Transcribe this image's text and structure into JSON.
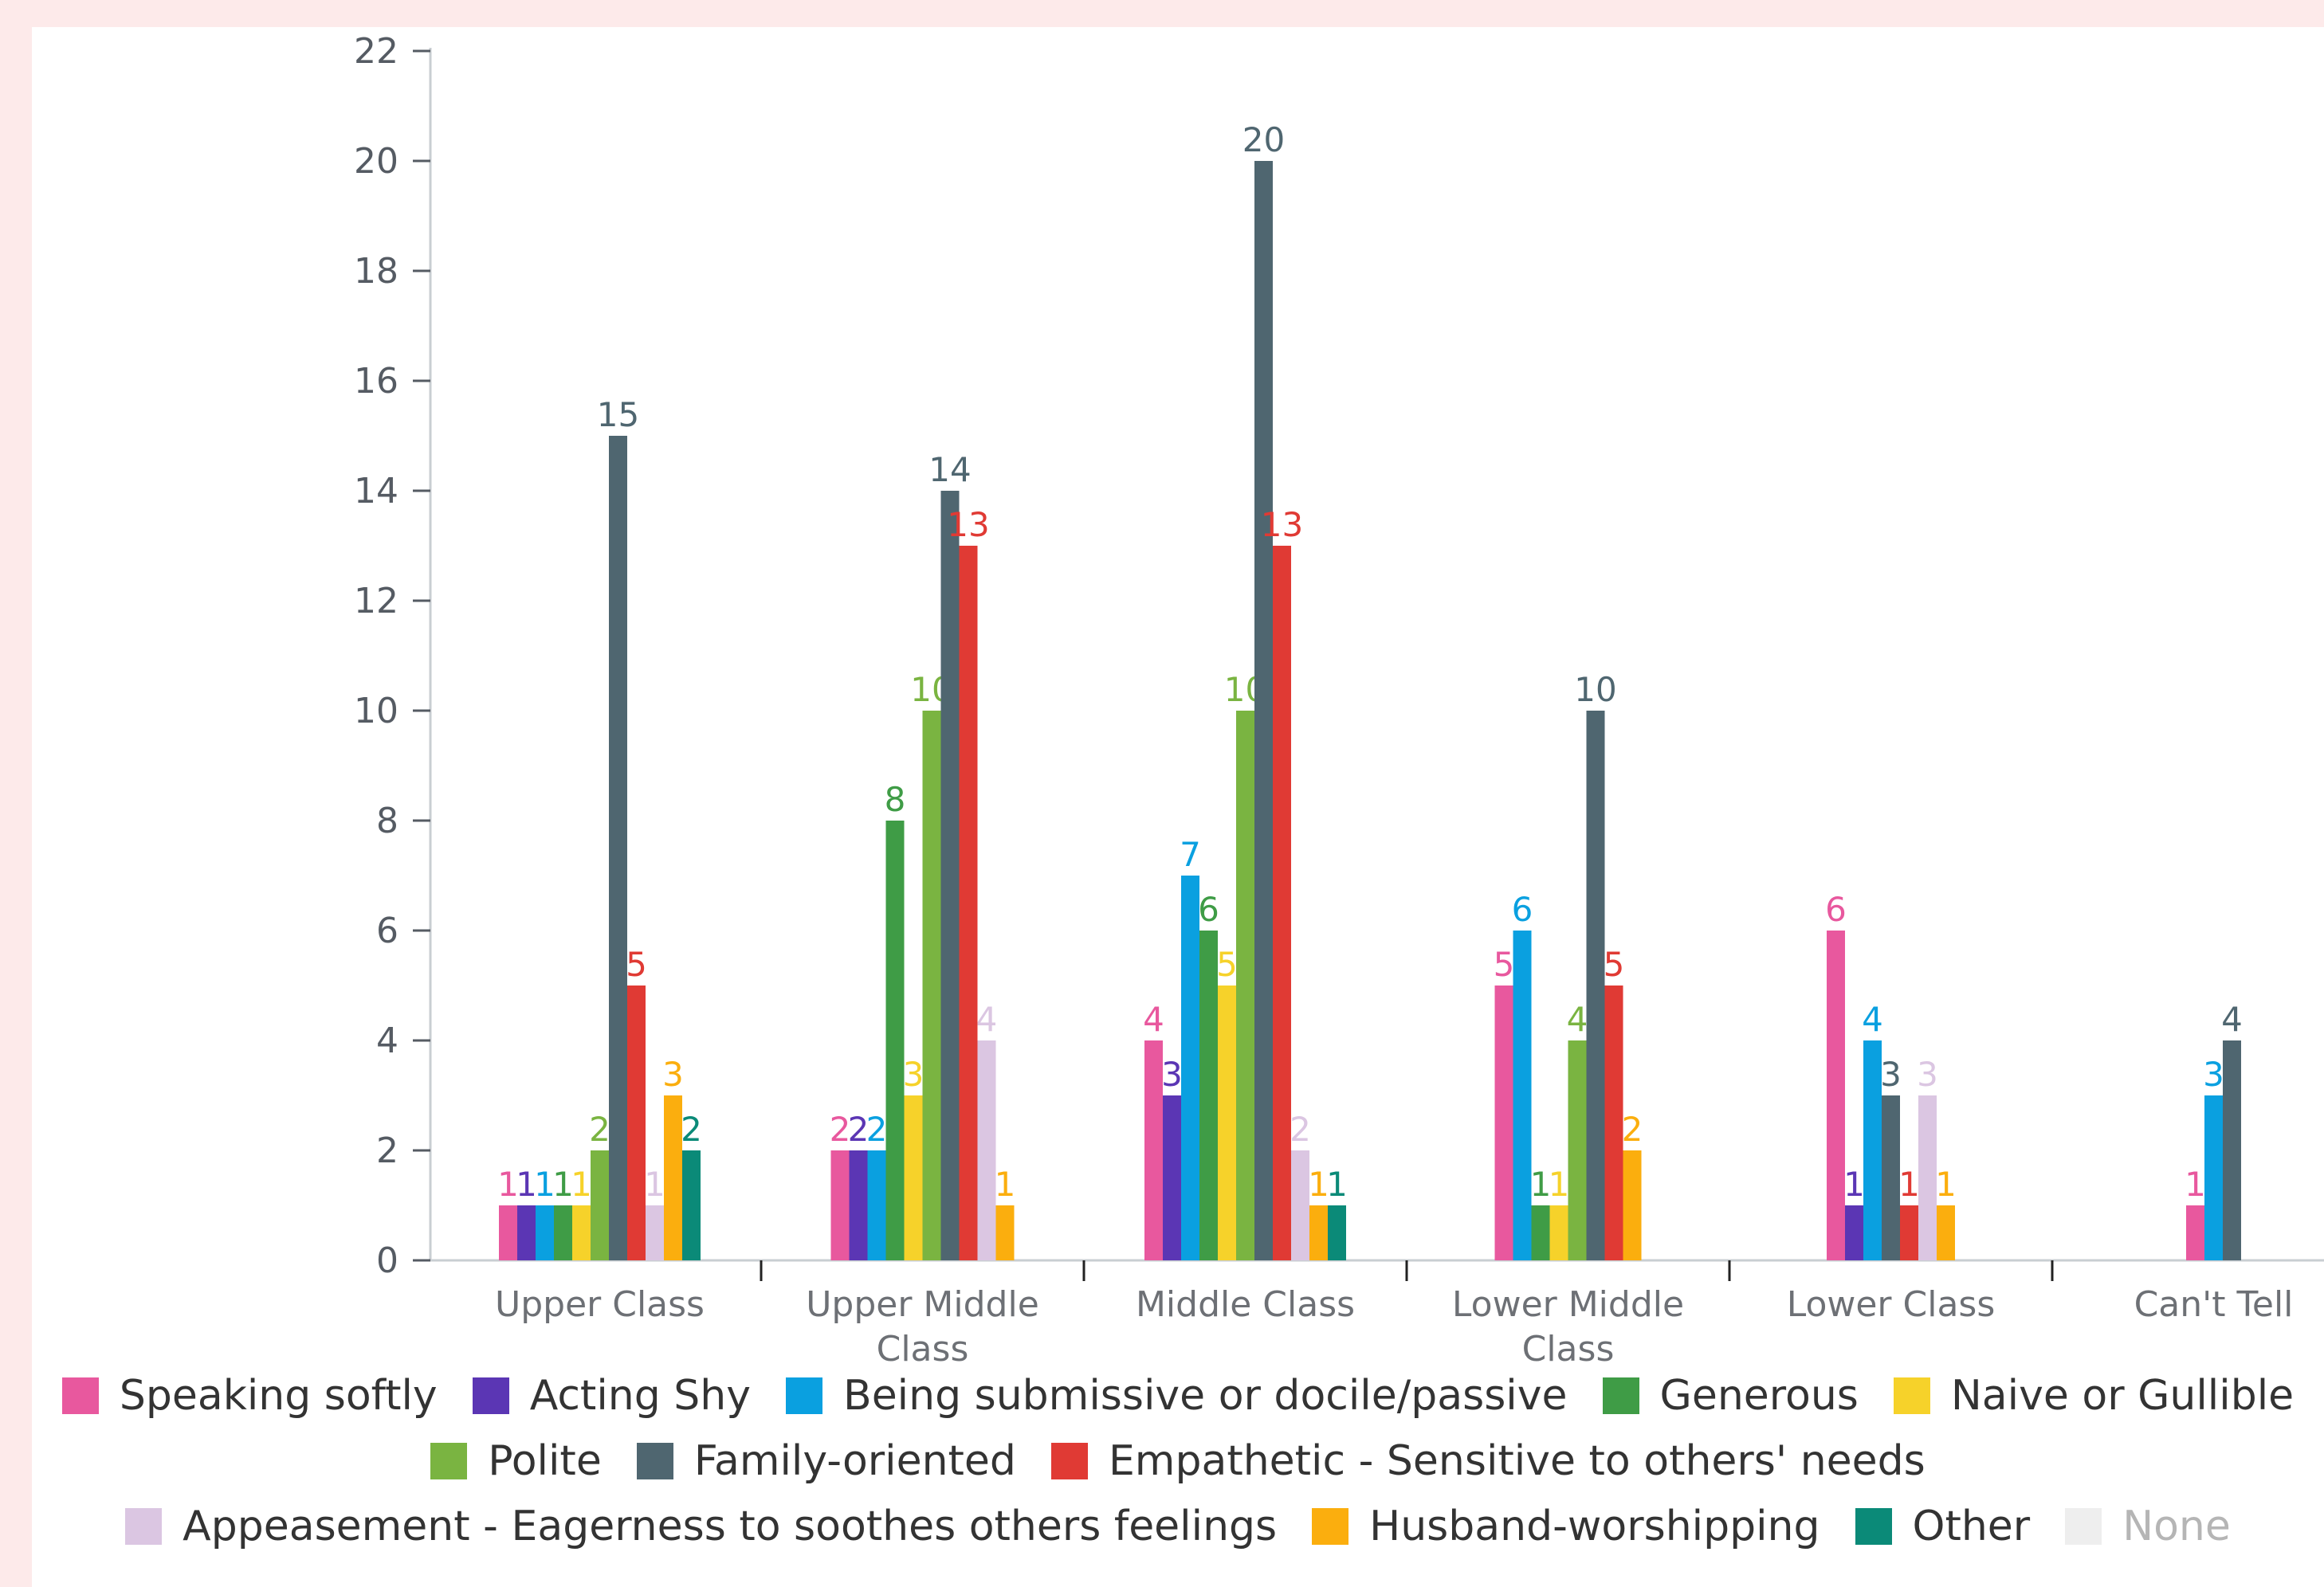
{
  "chart_data": {
    "type": "bar",
    "title": "",
    "xlabel": "",
    "ylabel": "",
    "ylim": [
      0,
      22
    ],
    "yticks": [
      0,
      2,
      4,
      6,
      8,
      10,
      12,
      14,
      16,
      18,
      20,
      22
    ],
    "grid": false,
    "legend_position": "bottom",
    "categories": [
      [
        "Upper Class"
      ],
      [
        "Upper Middle",
        "Class"
      ],
      [
        "Middle Class"
      ],
      [
        "Lower Middle",
        "Class"
      ],
      [
        "Lower Class"
      ],
      [
        "Can't Tell"
      ]
    ],
    "series": [
      {
        "name": "Speaking softly",
        "color": "#e8589e",
        "values": [
          1,
          2,
          4,
          5,
          6,
          1
        ]
      },
      {
        "name": "Acting Shy",
        "color": "#5b36b4",
        "values": [
          1,
          2,
          3,
          null,
          1,
          null
        ]
      },
      {
        "name": "Being submissive or docile/passive",
        "color": "#0aa0e0",
        "values": [
          1,
          2,
          7,
          6,
          4,
          3
        ]
      },
      {
        "name": "Generous",
        "color": "#3f9c46",
        "values": [
          1,
          8,
          6,
          1,
          null,
          null
        ]
      },
      {
        "name": "Naive or Gullible",
        "color": "#f6d22a",
        "values": [
          1,
          3,
          5,
          1,
          null,
          null
        ]
      },
      {
        "name": "Polite",
        "color": "#7ab441",
        "values": [
          2,
          10,
          10,
          4,
          null,
          null
        ]
      },
      {
        "name": "Family-oriented",
        "color": "#4f6670",
        "values": [
          15,
          14,
          20,
          10,
          3,
          4
        ]
      },
      {
        "name": "Empathetic - Sensitive to others' needs",
        "color": "#e03a34",
        "values": [
          5,
          13,
          13,
          5,
          1,
          null
        ]
      },
      {
        "name": "Appeasement - Eagerness to soothes others feelings",
        "color": "#dbc6e2",
        "values": [
          1,
          4,
          2,
          null,
          3,
          null
        ]
      },
      {
        "name": "Husband-worshipping",
        "color": "#fbae0e",
        "values": [
          3,
          1,
          1,
          2,
          1,
          null
        ]
      },
      {
        "name": "Other",
        "color": "#0b8a78",
        "values": [
          2,
          null,
          1,
          null,
          null,
          null
        ]
      },
      {
        "name": "None",
        "color": "#eeeeee",
        "values": [
          null,
          null,
          null,
          null,
          null,
          null
        ]
      }
    ]
  },
  "legend_rows": [
    [
      0,
      1,
      2,
      3,
      4
    ],
    [
      5,
      6,
      7
    ],
    [
      8,
      9,
      10,
      11
    ]
  ],
  "muted_series": [
    11
  ]
}
